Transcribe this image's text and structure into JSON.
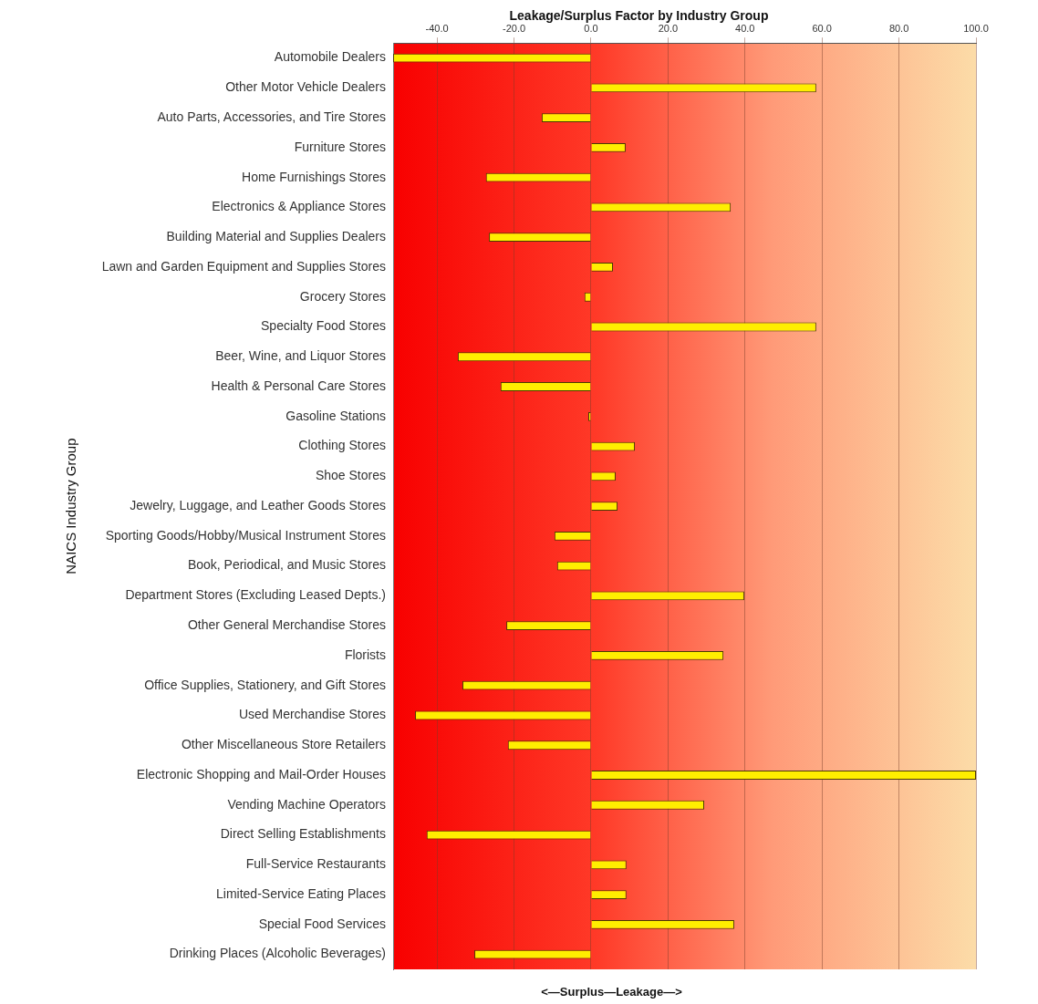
{
  "chart_data": {
    "type": "bar",
    "orientation": "horizontal",
    "title": "Leakage/Surplus Factor by Industry Group",
    "xlabel": "<—Surplus—Leakage—>",
    "ylabel": "NAICS Industry Group",
    "categories": [
      "Automobile Dealers",
      "Other Motor Vehicle Dealers",
      "Auto Parts, Accessories, and Tire Stores",
      "Furniture Stores",
      "Home Furnishings Stores",
      "Electronics & Appliance Stores",
      "Building Material and Supplies Dealers",
      "Lawn and Garden Equipment and Supplies Stores",
      "Grocery Stores",
      "Specialty Food Stores",
      "Beer, Wine, and Liquor Stores",
      "Health & Personal Care Stores",
      "Gasoline Stations",
      "Clothing Stores",
      "Shoe Stores",
      "Jewelry, Luggage, and Leather Goods Stores",
      "Sporting Goods/Hobby/Musical Instrument Stores",
      "Book, Periodical, and Music Stores",
      "Department Stores (Excluding Leased Depts.)",
      "Other General Merchandise Stores",
      "Florists",
      "Office Supplies, Stationery, and Gift Stores",
      "Used Merchandise Stores",
      "Other Miscellaneous Store Retailers",
      "Electronic Shopping and Mail-Order Houses",
      "Vending Machine Operators",
      "Direct Selling Establishments",
      "Full-Service Restaurants",
      "Limited-Service Eating Places",
      "Special Food Services",
      "Drinking Places (Alcoholic Beverages)"
    ],
    "values": [
      -51.4,
      58.5,
      -12.8,
      9.0,
      -27.3,
      36.3,
      -26.5,
      5.7,
      -1.7,
      58.5,
      -34.6,
      -23.5,
      -0.7,
      11.4,
      6.4,
      6.9,
      -9.5,
      -8.8,
      39.8,
      -22.0,
      34.4,
      -33.4,
      -45.7,
      -21.6,
      100,
      29.4,
      -42.7,
      9.2,
      9.2,
      37.2,
      -30.3
    ],
    "color": "#ffee00",
    "xlim": [
      -51.4,
      100
    ],
    "xticks": [
      {
        "value": -40,
        "label": "-40.0"
      },
      {
        "value": -20,
        "label": "-20.0"
      },
      {
        "value": 0,
        "label": "0.0"
      },
      {
        "value": 20,
        "label": "20.0"
      },
      {
        "value": 40,
        "label": "40.0"
      },
      {
        "value": 60,
        "label": "60.0"
      },
      {
        "value": 80,
        "label": "80.0"
      },
      {
        "value": 100,
        "label": "100.0"
      }
    ],
    "grid": "x",
    "legend": false
  }
}
